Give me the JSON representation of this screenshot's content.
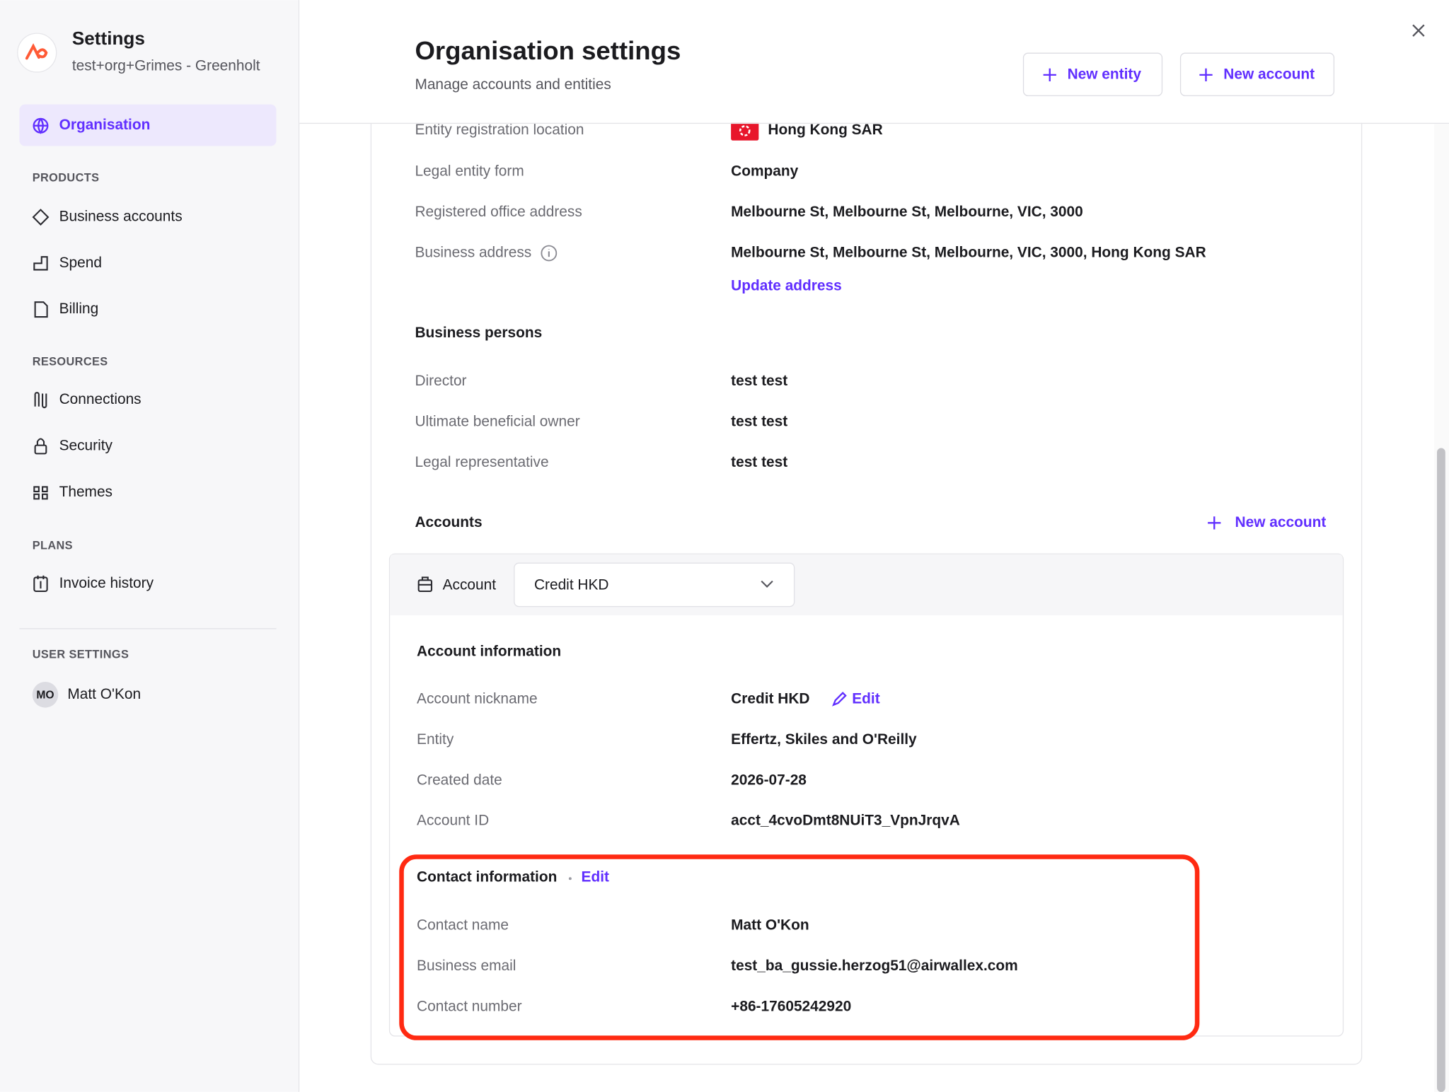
{
  "sidebar": {
    "title": "Settings",
    "subtitle": "test+org+Grimes - Greenholt",
    "active": "Organisation",
    "groups": [
      {
        "heading": "PRODUCTS",
        "items": [
          "Business accounts",
          "Spend",
          "Billing"
        ]
      },
      {
        "heading": "RESOURCES",
        "items": [
          "Connections",
          "Security",
          "Themes"
        ]
      },
      {
        "heading": "PLANS",
        "items": [
          "Invoice history"
        ]
      }
    ],
    "user_heading": "USER SETTINGS",
    "user_initials": "MO",
    "user_name": "Matt O'Kon"
  },
  "header": {
    "title": "Organisation settings",
    "subtitle": "Manage accounts and entities",
    "buttons": [
      "New entity",
      "New account"
    ]
  },
  "entity_rows": [
    [
      "Entity registration location",
      "Hong Kong SAR"
    ],
    [
      "Legal entity form",
      "Company"
    ],
    [
      "Registered office address",
      "Melbourne St, Melbourne St, Melbourne, VIC, 3000"
    ],
    [
      "Business address",
      "Melbourne St, Melbourne St, Melbourne, VIC, 3000, Hong Kong SAR"
    ]
  ],
  "update_address": "Update address",
  "business_persons": {
    "title": "Business persons",
    "rows": [
      [
        "Director",
        "test test"
      ],
      [
        "Ultimate beneficial owner",
        "test test"
      ],
      [
        "Legal representative",
        "test test"
      ]
    ]
  },
  "accounts": {
    "title": "Accounts",
    "new_account": "New account",
    "selector_label": "Account",
    "selected": "Credit HKD"
  },
  "account_info": {
    "title": "Account information",
    "edit": "Edit",
    "rows": [
      [
        "Account nickname",
        "Credit HKD"
      ],
      [
        "Entity",
        "Effertz, Skiles and O'Reilly"
      ],
      [
        "Created date",
        "2026-07-28"
      ],
      [
        "Account ID",
        "acct_4cvoDmt8NUiT3_VpnJrqvA"
      ]
    ]
  },
  "contact_info": {
    "title": "Contact information",
    "edit": "Edit",
    "rows": [
      [
        "Contact name",
        "Matt O'Kon"
      ],
      [
        "Business email",
        "test_ba_gussie.herzog51@airwallex.com"
      ],
      [
        "Contact number",
        "+86-17605242920"
      ]
    ]
  }
}
